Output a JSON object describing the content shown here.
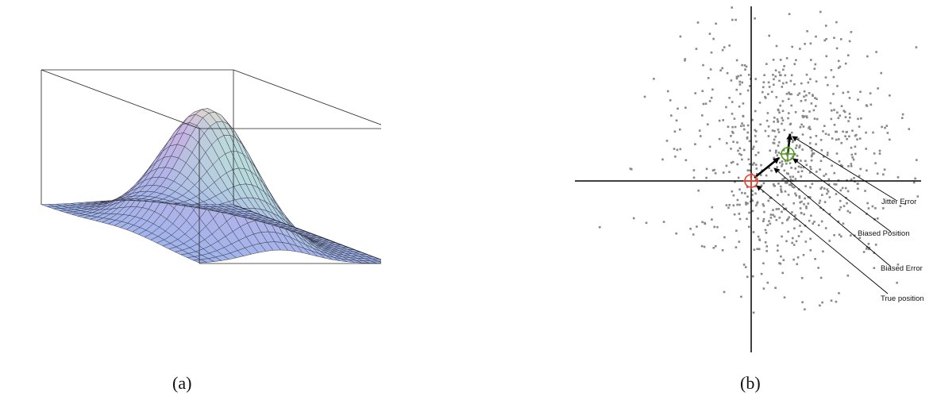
{
  "panel_a": {
    "caption": "(a)",
    "surface_colors": [
      "#9fb4ec",
      "#c8b4e2",
      "#b8e8d8",
      "#f2f2b8"
    ],
    "frame_color": "#222222"
  },
  "panel_b": {
    "caption": "(b)",
    "labels": {
      "jitter_error": "Jitter Error",
      "biased_position": "Biased Position",
      "biased_error": "Biased Error",
      "true_position": "True position"
    },
    "colors": {
      "points": "#888888",
      "true_marker": "#e8402c",
      "biased_marker": "#4c9a18",
      "axes": "#000000"
    }
  }
}
